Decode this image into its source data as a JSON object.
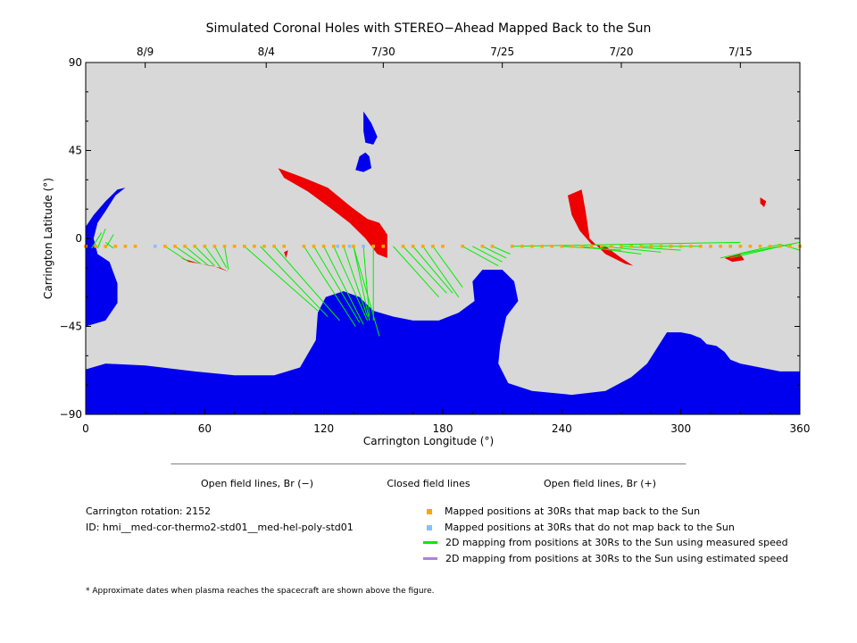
{
  "chart_data": {
    "type": "map",
    "title": "Simulated Coronal Holes with STEREO−Ahead Mapped Back to the Sun",
    "xlabel": "Carrington Longitude (°)",
    "ylabel": "Carrington Latitude (°)",
    "xlim": [
      0,
      360
    ],
    "ylim": [
      -90,
      90
    ],
    "x_ticks": [
      0,
      60,
      120,
      180,
      240,
      300,
      360
    ],
    "y_ticks": [
      {
        "value": 90,
        "label": "90"
      },
      {
        "value": 45,
        "label": "45"
      },
      {
        "value": 0,
        "label": "0"
      },
      {
        "value": -45,
        "label": "−45"
      },
      {
        "value": -90,
        "label": "−90"
      }
    ],
    "top_date_ticks": [
      {
        "lon": 30,
        "label": "8/9"
      },
      {
        "lon": 91,
        "label": "8/4"
      },
      {
        "lon": 150,
        "label": "7/30"
      },
      {
        "lon": 210,
        "label": "7/25"
      },
      {
        "lon": 270,
        "label": "7/20"
      },
      {
        "lon": 330,
        "label": "7/15"
      }
    ],
    "colors": {
      "closed": "#d8d8d8",
      "open_negative": "#0000ee",
      "open_positive": "#ee0000",
      "mapped_back": "#ffa500",
      "not_mapped": "#87bfff",
      "measured_speed": "#00ee00",
      "estimated_speed": "#b080e0"
    },
    "open_negative_regions": [
      [
        [
          0,
          -90
        ],
        [
          360,
          -90
        ],
        [
          360,
          -68
        ],
        [
          350,
          -68
        ],
        [
          340,
          -66
        ],
        [
          330,
          -64
        ],
        [
          325,
          -62
        ],
        [
          322,
          -58
        ],
        [
          318,
          -55
        ],
        [
          313,
          -54
        ],
        [
          310,
          -51
        ],
        [
          305,
          -49
        ],
        [
          300,
          -48
        ],
        [
          293,
          -48
        ],
        [
          288,
          -56
        ],
        [
          283,
          -64
        ],
        [
          275,
          -71
        ],
        [
          262,
          -78
        ],
        [
          245,
          -80
        ],
        [
          225,
          -78
        ],
        [
          213,
          -74
        ],
        [
          208,
          -64
        ],
        [
          209,
          -54
        ],
        [
          212,
          -40
        ],
        [
          218,
          -32
        ],
        [
          216,
          -22
        ],
        [
          210,
          -16
        ],
        [
          200,
          -16
        ],
        [
          195,
          -22
        ],
        [
          196,
          -32
        ],
        [
          188,
          -38
        ],
        [
          178,
          -42
        ],
        [
          165,
          -42
        ],
        [
          155,
          -40
        ],
        [
          145,
          -37
        ],
        [
          138,
          -30
        ],
        [
          130,
          -27
        ],
        [
          121,
          -30
        ],
        [
          117,
          -38
        ],
        [
          116,
          -52
        ],
        [
          108,
          -66
        ],
        [
          95,
          -70
        ],
        [
          75,
          -70
        ],
        [
          55,
          -68
        ],
        [
          30,
          -65
        ],
        [
          10,
          -64
        ],
        [
          0,
          -67
        ]
      ],
      [
        [
          0,
          -45
        ],
        [
          10,
          -42
        ],
        [
          16,
          -33
        ],
        [
          16,
          -23
        ],
        [
          12,
          -12
        ],
        [
          6,
          -8
        ],
        [
          4,
          0
        ],
        [
          6,
          8
        ],
        [
          10,
          14
        ],
        [
          15,
          22
        ],
        [
          20,
          26
        ],
        [
          16,
          25
        ],
        [
          10,
          19
        ],
        [
          4,
          12
        ],
        [
          0,
          6
        ]
      ],
      [
        [
          140,
          65
        ],
        [
          144,
          59
        ],
        [
          147,
          52
        ],
        [
          145,
          48
        ],
        [
          141,
          49
        ],
        [
          140,
          55
        ]
      ],
      [
        [
          138,
          42
        ],
        [
          141,
          44
        ],
        [
          143,
          42
        ],
        [
          144,
          36
        ],
        [
          140,
          34
        ],
        [
          136,
          35
        ]
      ]
    ],
    "open_positive_regions": [
      [
        [
          97,
          36
        ],
        [
          110,
          31
        ],
        [
          122,
          26
        ],
        [
          134,
          16
        ],
        [
          142,
          10
        ],
        [
          148,
          8
        ],
        [
          152,
          2
        ],
        [
          152,
          -10
        ],
        [
          147,
          -8
        ],
        [
          141,
          0
        ],
        [
          133,
          8
        ],
        [
          124,
          15
        ],
        [
          112,
          24
        ],
        [
          100,
          31
        ]
      ],
      [
        [
          243,
          22
        ],
        [
          250,
          25
        ],
        [
          252,
          14
        ],
        [
          254,
          0
        ],
        [
          262,
          -8
        ],
        [
          272,
          -13
        ],
        [
          276,
          -14
        ],
        [
          270,
          -10
        ],
        [
          262,
          -4
        ],
        [
          255,
          -3
        ],
        [
          249,
          4
        ],
        [
          245,
          12
        ]
      ],
      [
        [
          48,
          -10
        ],
        [
          58,
          -13
        ],
        [
          68,
          -15
        ],
        [
          72,
          -17
        ],
        [
          64,
          -14
        ],
        [
          52,
          -12
        ]
      ],
      [
        [
          322,
          -10
        ],
        [
          330,
          -8
        ],
        [
          332,
          -11
        ],
        [
          326,
          -12
        ]
      ],
      [
        [
          340,
          21
        ],
        [
          343,
          19
        ],
        [
          342,
          16
        ],
        [
          340,
          18
        ]
      ],
      [
        [
          100,
          -7
        ],
        [
          102,
          -6
        ],
        [
          101,
          -10
        ]
      ]
    ],
    "mapped_back_lons": [
      0,
      5,
      10,
      15,
      20,
      25,
      40,
      45,
      50,
      55,
      60,
      65,
      70,
      75,
      80,
      85,
      90,
      95,
      100,
      110,
      115,
      120,
      125,
      130,
      135,
      140,
      145,
      150,
      160,
      165,
      170,
      175,
      180,
      190,
      200,
      205,
      215,
      220,
      225,
      230,
      235,
      240,
      245,
      250,
      255,
      260,
      265,
      270,
      275,
      280,
      285,
      290,
      295,
      300,
      305,
      310,
      315,
      320,
      325,
      330,
      335,
      340,
      345,
      350,
      355,
      360
    ],
    "not_mapped_lons": [
      35,
      127,
      133,
      140
    ],
    "measured_speed_segments": [
      [
        [
          3,
          -5
        ],
        [
          8,
          3
        ]
      ],
      [
        [
          6,
          -5
        ],
        [
          10,
          5
        ]
      ],
      [
        [
          10,
          -5
        ],
        [
          14,
          2
        ]
      ],
      [
        [
          14,
          -5
        ],
        [
          10,
          -2
        ]
      ],
      [
        [
          45,
          -4
        ],
        [
          58,
          -13
        ]
      ],
      [
        [
          50,
          -4
        ],
        [
          62,
          -14
        ]
      ],
      [
        [
          55,
          -4
        ],
        [
          65,
          -14
        ]
      ],
      [
        [
          60,
          -4
        ],
        [
          68,
          -15
        ]
      ],
      [
        [
          65,
          -4
        ],
        [
          71,
          -15
        ]
      ],
      [
        [
          70,
          -4
        ],
        [
          72,
          -16
        ]
      ],
      [
        [
          40,
          -4
        ],
        [
          52,
          -12
        ]
      ],
      [
        [
          80,
          -4
        ],
        [
          117,
          -37
        ]
      ],
      [
        [
          88,
          -4
        ],
        [
          122,
          -40
        ]
      ],
      [
        [
          95,
          -4
        ],
        [
          128,
          -42
        ]
      ],
      [
        [
          110,
          -4
        ],
        [
          136,
          -45
        ]
      ],
      [
        [
          115,
          -4
        ],
        [
          138,
          -43
        ]
      ],
      [
        [
          120,
          -4
        ],
        [
          140,
          -44
        ]
      ],
      [
        [
          125,
          -4
        ],
        [
          142,
          -42
        ]
      ],
      [
        [
          130,
          -4
        ],
        [
          142,
          -40
        ]
      ],
      [
        [
          135,
          -4
        ],
        [
          143,
          -42
        ]
      ],
      [
        [
          140,
          -4
        ],
        [
          143,
          -40
        ]
      ],
      [
        [
          145,
          -4
        ],
        [
          145,
          -42
        ]
      ],
      [
        [
          135,
          -4
        ],
        [
          148,
          -50
        ]
      ],
      [
        [
          155,
          -4
        ],
        [
          178,
          -30
        ]
      ],
      [
        [
          160,
          -4
        ],
        [
          182,
          -28
        ]
      ],
      [
        [
          165,
          -4
        ],
        [
          185,
          -28
        ]
      ],
      [
        [
          170,
          -4
        ],
        [
          188,
          -30
        ]
      ],
      [
        [
          175,
          -4
        ],
        [
          190,
          -25
        ]
      ],
      [
        [
          190,
          -4
        ],
        [
          208,
          -14
        ]
      ],
      [
        [
          195,
          -4
        ],
        [
          210,
          -12
        ]
      ],
      [
        [
          200,
          -4
        ],
        [
          212,
          -10
        ]
      ],
      [
        [
          205,
          -4
        ],
        [
          214,
          -8
        ]
      ],
      [
        [
          215,
          -4
        ],
        [
          330,
          -2
        ]
      ],
      [
        [
          240,
          -4
        ],
        [
          270,
          -6
        ]
      ],
      [
        [
          250,
          -4
        ],
        [
          280,
          -8
        ]
      ],
      [
        [
          260,
          -4
        ],
        [
          290,
          -7
        ]
      ],
      [
        [
          270,
          -4
        ],
        [
          300,
          -6
        ]
      ],
      [
        [
          280,
          -4
        ],
        [
          310,
          -4
        ]
      ],
      [
        [
          320,
          -10
        ],
        [
          350,
          -3
        ]
      ],
      [
        [
          325,
          -10
        ],
        [
          355,
          -3
        ]
      ],
      [
        [
          330,
          -8
        ],
        [
          360,
          -2
        ]
      ],
      [
        [
          350,
          -3
        ],
        [
          360,
          -6
        ]
      ]
    ],
    "colorbar": [
      {
        "label": "Open field lines, Br (−)",
        "color": "#0000ee"
      },
      {
        "label": "Closed field lines",
        "color": "#d8d8d8"
      },
      {
        "label": "Open field lines, Br (+)",
        "color": "#ee0000"
      }
    ]
  },
  "info": {
    "rotation": "Carrington rotation: 2152",
    "id": "ID: hmi__med-cor-thermo2-std01__med-hel-poly-std01"
  },
  "legend": [
    {
      "label": "Mapped positions at 30Rs that map back to the Sun",
      "kind": "square",
      "color": "#ffa500"
    },
    {
      "label": "Mapped positions at 30Rs that do not map back to the Sun",
      "kind": "square",
      "color": "#87bfff"
    },
    {
      "label": "2D mapping from positions at 30Rs to the Sun using measured speed",
      "kind": "line",
      "color": "#00ee00"
    },
    {
      "label": "2D mapping from positions at 30Rs to the Sun using estimated speed",
      "kind": "line",
      "color": "#b080e0"
    }
  ],
  "footnote": "* Approximate dates when plasma reaches the spacecraft are shown above the figure."
}
